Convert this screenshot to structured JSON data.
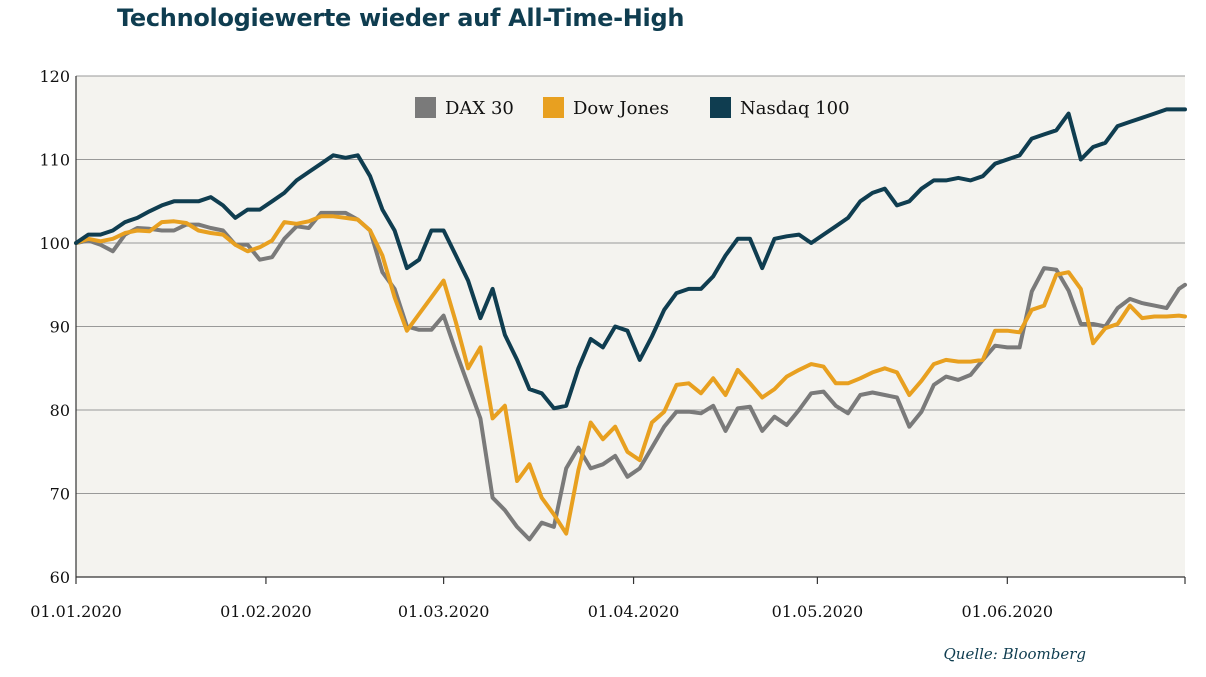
{
  "chart_data": {
    "type": "line",
    "title": "Technologiewerte wieder auf All-Time-High",
    "source": "Quelle: Bloomberg",
    "xlabel": "",
    "ylabel": "",
    "ylim": [
      60,
      120
    ],
    "yticks": [
      60,
      70,
      80,
      90,
      100,
      110,
      120
    ],
    "ytick_labels": [
      "60",
      "70",
      "80",
      "90",
      "100",
      "110",
      "120"
    ],
    "xlim_days": [
      0,
      181
    ],
    "xticks_days": [
      0,
      31,
      60,
      91,
      121,
      152
    ],
    "xtick_labels": [
      "01.01.2020",
      "01.02.2020",
      "01.03.2020",
      "01.04.2020",
      "01.05.2020",
      "01.06.2020"
    ],
    "legend_position": "top-center",
    "colors": {
      "plot_bg": "#f4f3ef",
      "grid": "#999999",
      "dax": "#7a7a7a",
      "dow": "#e8a020",
      "nasdaq": "#0f3d50"
    },
    "series": [
      {
        "name": "DAX 30",
        "key": "dax",
        "x": [
          0,
          2,
          4,
          6,
          8,
          10,
          12,
          14,
          16,
          18,
          20,
          22,
          24,
          26,
          28,
          30,
          32,
          34,
          36,
          38,
          40,
          42,
          44,
          46,
          48,
          50,
          52,
          54,
          56,
          58,
          60,
          62,
          64,
          66,
          68,
          70,
          72,
          74,
          76,
          78,
          80,
          82,
          84,
          86,
          88,
          90,
          92,
          94,
          96,
          98,
          100,
          102,
          104,
          106,
          108,
          110,
          112,
          114,
          116,
          118,
          120,
          122,
          124,
          126,
          128,
          130,
          132,
          134,
          136,
          138,
          140,
          142,
          144,
          146,
          148,
          150,
          152,
          154,
          156,
          158,
          160,
          162,
          164,
          166,
          168,
          170,
          172,
          174,
          176,
          178,
          180,
          181
        ],
        "values": [
          100,
          100.3,
          99.8,
          99,
          101,
          101.8,
          101.7,
          101.5,
          101.5,
          102.2,
          102.2,
          101.8,
          101.5,
          99.8,
          99.8,
          98,
          98.3,
          100.5,
          102,
          101.8,
          103.6,
          103.6,
          103.6,
          102.8,
          101.5,
          96.5,
          94.5,
          90,
          89.6,
          89.6,
          91.3,
          87,
          83,
          79,
          69.5,
          68,
          66,
          64.5,
          66.5,
          66,
          73,
          75.5,
          73,
          73.5,
          74.5,
          72,
          73,
          75.5,
          78,
          79.8,
          79.8,
          79.6,
          80.5,
          77.5,
          80.2,
          80.4,
          77.5,
          79.2,
          78.2,
          80,
          82,
          82.2,
          80.5,
          79.6,
          81.8,
          82.1,
          81.8,
          81.5,
          78,
          79.8,
          83,
          84,
          83.6,
          84.2,
          86,
          87.7,
          87.5,
          87.5,
          94.2,
          97,
          96.8,
          94.3,
          90.3,
          90.3,
          90,
          92.2,
          93.3,
          92.8,
          92.5,
          92.2,
          94.5,
          95
        ]
      },
      {
        "name": "Dow Jones",
        "key": "dow",
        "x": [
          0,
          2,
          4,
          6,
          8,
          10,
          12,
          14,
          16,
          18,
          20,
          22,
          24,
          26,
          28,
          30,
          32,
          34,
          36,
          38,
          40,
          42,
          44,
          46,
          48,
          50,
          52,
          54,
          56,
          58,
          60,
          62,
          64,
          66,
          68,
          70,
          72,
          74,
          76,
          78,
          80,
          82,
          84,
          86,
          88,
          90,
          92,
          94,
          96,
          98,
          100,
          102,
          104,
          106,
          108,
          110,
          112,
          114,
          116,
          118,
          120,
          122,
          124,
          126,
          128,
          130,
          132,
          134,
          136,
          138,
          140,
          142,
          144,
          146,
          148,
          150,
          152,
          154,
          156,
          158,
          160,
          162,
          164,
          166,
          168,
          170,
          172,
          174,
          176,
          178,
          180,
          181
        ],
        "values": [
          100,
          100.5,
          100.2,
          100.5,
          101.2,
          101.5,
          101.4,
          102.5,
          102.6,
          102.4,
          101.5,
          101.2,
          101,
          99.8,
          99,
          99.5,
          100.3,
          102.5,
          102.3,
          102.6,
          103.2,
          103.2,
          103,
          102.8,
          101.5,
          98.5,
          93.5,
          89.5,
          91.5,
          93.5,
          95.5,
          90.5,
          85,
          87.5,
          79,
          80.5,
          71.5,
          73.5,
          69.5,
          67.5,
          65.2,
          72.8,
          78.5,
          76.5,
          78,
          75,
          74,
          78.5,
          79.8,
          83,
          83.2,
          82,
          83.8,
          81.8,
          84.8,
          83.2,
          81.5,
          82.5,
          84,
          84.8,
          85.5,
          85.2,
          83.2,
          83.2,
          83.8,
          84.5,
          85,
          84.5,
          81.8,
          83.5,
          85.5,
          86,
          85.8,
          85.8,
          86,
          89.5,
          89.5,
          89.3,
          92,
          92.5,
          96.2,
          96.5,
          94.5,
          88,
          89.8,
          90.3,
          92.5,
          91,
          91.2,
          91.2,
          91.3,
          91.2
        ]
      },
      {
        "name": "Nasdaq 100",
        "key": "nasdaq",
        "x": [
          0,
          2,
          4,
          6,
          8,
          10,
          12,
          14,
          16,
          18,
          20,
          22,
          24,
          26,
          28,
          30,
          32,
          34,
          36,
          38,
          40,
          42,
          44,
          46,
          48,
          50,
          52,
          54,
          56,
          58,
          60,
          62,
          64,
          66,
          68,
          70,
          72,
          74,
          76,
          78,
          80,
          82,
          84,
          86,
          88,
          90,
          92,
          94,
          96,
          98,
          100,
          102,
          104,
          106,
          108,
          110,
          112,
          114,
          116,
          118,
          120,
          122,
          124,
          126,
          128,
          130,
          132,
          134,
          136,
          138,
          140,
          142,
          144,
          146,
          148,
          150,
          152,
          154,
          156,
          158,
          160,
          162,
          164,
          166,
          168,
          170,
          172,
          174,
          176,
          178,
          180,
          181
        ],
        "values": [
          100,
          101,
          101,
          101.5,
          102.5,
          103,
          103.8,
          104.5,
          105,
          105,
          105,
          105.5,
          104.5,
          103,
          104,
          104,
          105,
          106,
          107.5,
          108.5,
          109.5,
          110.5,
          110.2,
          110.5,
          108,
          104,
          101.5,
          97,
          98,
          101.5,
          101.5,
          98.5,
          95.5,
          91,
          94.5,
          89,
          86,
          82.5,
          82,
          80.2,
          80.5,
          85,
          88.5,
          87.5,
          90,
          89.5,
          86,
          88.8,
          92,
          94,
          94.5,
          94.5,
          96,
          98.5,
          100.5,
          100.5,
          97,
          100.5,
          100.8,
          101,
          100,
          101,
          102,
          103,
          105,
          106,
          106.5,
          104.5,
          105,
          106.5,
          107.5,
          107.5,
          107.8,
          107.5,
          108,
          109.5,
          110,
          110.5,
          112.5,
          113,
          113.5,
          115.5,
          110,
          111.5,
          112,
          114,
          114.5,
          115,
          115.5,
          116,
          116,
          116
        ]
      }
    ]
  }
}
